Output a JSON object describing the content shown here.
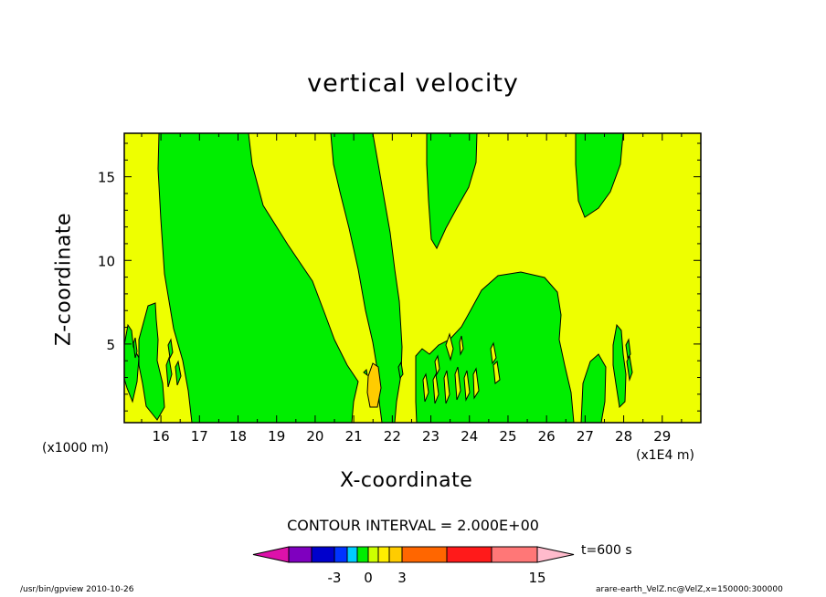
{
  "chart_data": {
    "type": "contour",
    "title": "vertical velocity",
    "xlabel": "X-coordinate",
    "ylabel": "Z-coordinate",
    "x_units": "(x1E4 m)",
    "y_units": "(x1000 m)",
    "xlim": [
      15.05,
      30.0
    ],
    "ylim": [
      0.3,
      17.6
    ],
    "x_ticks": [
      "16",
      "17",
      "18",
      "19",
      "20",
      "21",
      "22",
      "23",
      "24",
      "25",
      "26",
      "27",
      "28",
      "29"
    ],
    "y_ticks": [
      "5",
      "10",
      "15"
    ],
    "contour_interval": "CONTOUR INTERVAL = 2.000E+00",
    "time_label": "t=600 s",
    "colorbar": {
      "tick_labels": [
        "-3",
        "0",
        "3",
        "15"
      ],
      "colors": [
        "#dd11aa",
        "#7f00bf",
        "#0000cc",
        "#0033ff",
        "#00ccff",
        "#00ee00",
        "#ccff00",
        "#ffee00",
        "#ffcc00",
        "#ff6600",
        "#ff1a1a",
        "#ff7777",
        "#ffbbcc"
      ]
    },
    "regions_color_legend": {
      "background_positive": "#eeff00",
      "negative_small": "#00ee00",
      "positive_moderate": "#ffcc00"
    }
  },
  "footer": {
    "left": "/usr/bin/gpview   2010-10-26",
    "right": "arare-earth_VelZ.nc@VelZ,x=150000:300000"
  }
}
